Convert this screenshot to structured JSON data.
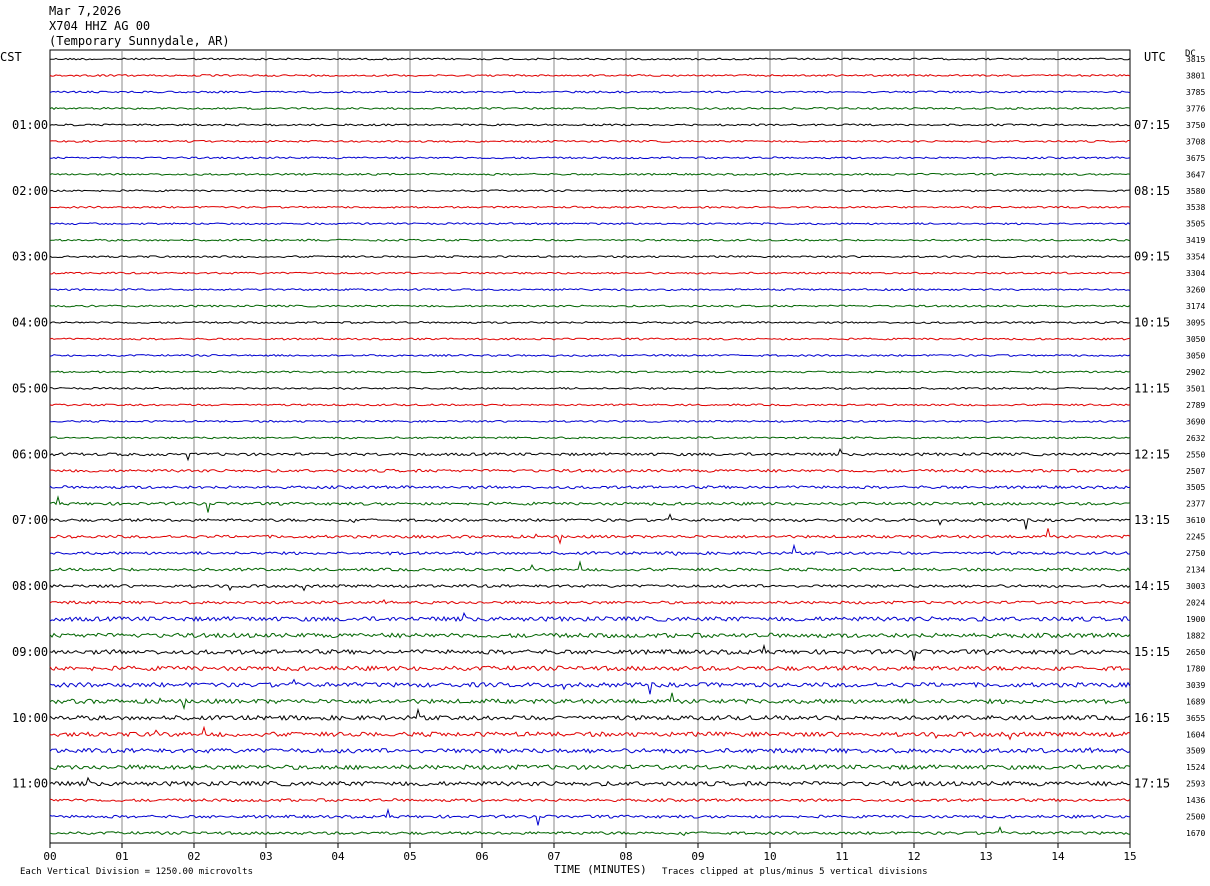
{
  "header": {
    "date": "Mar 7,2026",
    "station": "X704 HHZ AG 00",
    "location": "(Temporary Sunnydale, AR)"
  },
  "left_tz": "CST",
  "right_tz": "UTC",
  "dc_label": "DC",
  "footer": {
    "scale_note": "Each Vertical Division = 1250.00 microvolts",
    "xlabel": "TIME (MINUTES)",
    "clip_note": "Traces clipped at plus/minus 5 vertical divisions"
  },
  "chart_data": {
    "type": "line",
    "title": "X704 HHZ AG 00",
    "xlabel": "TIME (MINUTES)",
    "x_ticks": [
      "00",
      "01",
      "02",
      "03",
      "04",
      "05",
      "06",
      "07",
      "08",
      "09",
      "10",
      "11",
      "12",
      "13",
      "14",
      "15"
    ],
    "xlim": [
      0,
      15
    ],
    "traces_count": 48,
    "trace_colors": [
      "#000000",
      "#e00000",
      "#0000d0",
      "#006400"
    ],
    "left_hour_labels": [
      "01:00",
      "02:00",
      "03:00",
      "04:00",
      "05:00",
      "06:00",
      "07:00",
      "08:00",
      "09:00",
      "10:00",
      "11:00"
    ],
    "right_hour_labels": [
      "07:15",
      "08:15",
      "09:15",
      "10:15",
      "11:15",
      "12:15",
      "13:15",
      "14:15",
      "15:15",
      "16:15",
      "17:15"
    ],
    "dc_values": [
      "3815",
      "3801",
      "3785",
      "3776",
      "3750",
      "3708",
      "3675",
      "3647",
      "3580",
      "3538",
      "3505",
      "3419",
      "3354",
      "3304",
      "3260",
      "3174",
      "3095",
      "3050",
      "3050",
      "2902",
      "3501",
      "2789",
      "3690",
      "2632",
      "2550",
      "2507",
      "3505",
      "2377",
      "3610",
      "2245",
      "2750",
      "2134",
      "3003",
      "2024",
      "1900",
      "1882",
      "2650",
      "1780",
      "3039",
      "1689",
      "3655",
      "1604",
      "3509",
      "1524",
      "2593",
      "1436",
      "2500",
      "1670"
    ],
    "grid": true
  }
}
